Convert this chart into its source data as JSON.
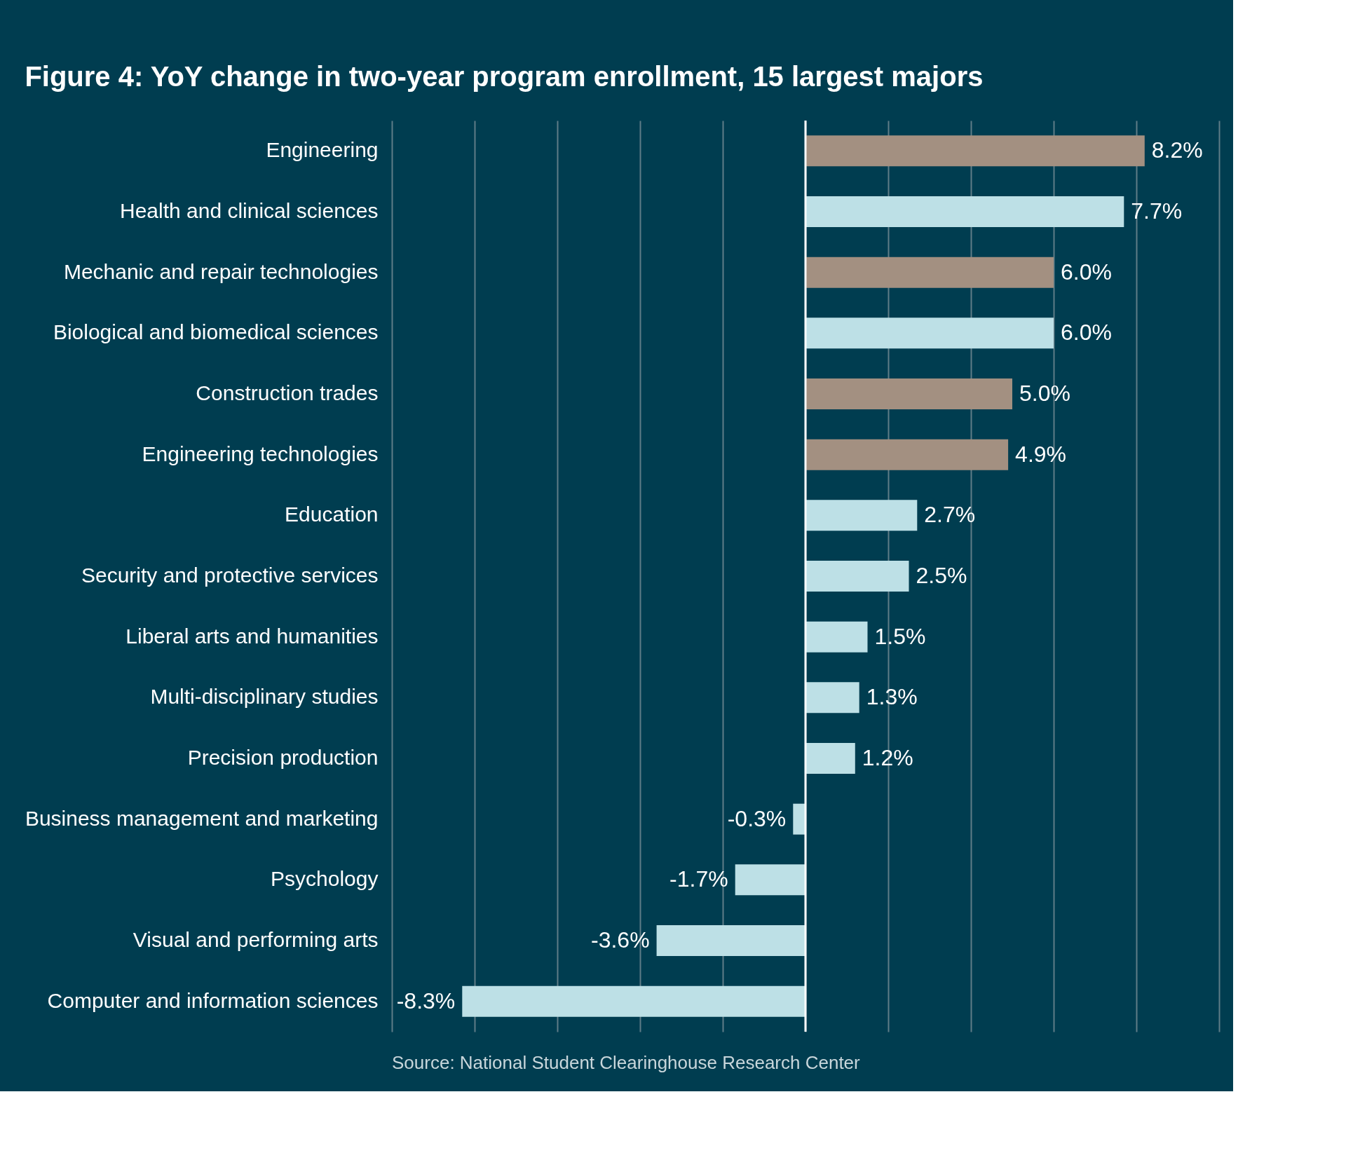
{
  "chart_data": {
    "type": "bar",
    "orientation": "horizontal",
    "title": "Figure 4: YoY change in two-year program enrollment, 15 largest majors",
    "categories": [
      "Engineering",
      "Health and clinical sciences",
      "Mechanic and repair technologies",
      "Biological and biomedical sciences",
      "Construction trades",
      "Engineering technologies",
      "Education",
      "Security and protective services",
      "Liberal arts and humanities",
      "Multi-disciplinary studies",
      "Precision production",
      "Business management and marketing",
      "Psychology",
      "Visual and performing arts",
      "Computer and information sciences"
    ],
    "values": [
      8.2,
      7.7,
      6.0,
      6.0,
      5.0,
      4.9,
      2.7,
      2.5,
      1.5,
      1.3,
      1.2,
      -0.3,
      -1.7,
      -3.6,
      -8.3
    ],
    "value_labels": [
      "8.2%",
      "7.7%",
      "6.0%",
      "6.0%",
      "5.0%",
      "4.9%",
      "2.7%",
      "2.5%",
      "1.5%",
      "1.3%",
      "1.2%",
      "-0.3%",
      "-1.7%",
      "-3.6%",
      "-8.3%"
    ],
    "colors": [
      "#a39081",
      "#bde0e6",
      "#a39081",
      "#bde0e6",
      "#a39081",
      "#a39081",
      "#bde0e6",
      "#bde0e6",
      "#bde0e6",
      "#bde0e6",
      "#bde0e6",
      "#bde0e6",
      "#bde0e6",
      "#bde0e6",
      "#bde0e6"
    ],
    "xlim": [
      -10,
      10
    ],
    "xticks": [
      {
        "value": -10,
        "label": null
      },
      {
        "value": -8,
        "label": null
      },
      {
        "value": -6,
        "label": null
      },
      {
        "value": -4,
        "label": null
      },
      {
        "value": -2,
        "label": null
      },
      {
        "value": 0,
        "label": null
      },
      {
        "value": 2,
        "label": null
      },
      {
        "value": 4,
        "label": null
      },
      {
        "value": 6,
        "label": null
      },
      {
        "value": 8,
        "label": null
      },
      {
        "value": 10,
        "label": null
      }
    ],
    "grid": "x",
    "tick_labels": "y",
    "ref_lines": [
      {
        "axis": "x",
        "value": 0,
        "color": "#ffffff"
      }
    ],
    "annotations": [
      "Source: National Student Clearinghouse Research Center"
    ]
  }
}
